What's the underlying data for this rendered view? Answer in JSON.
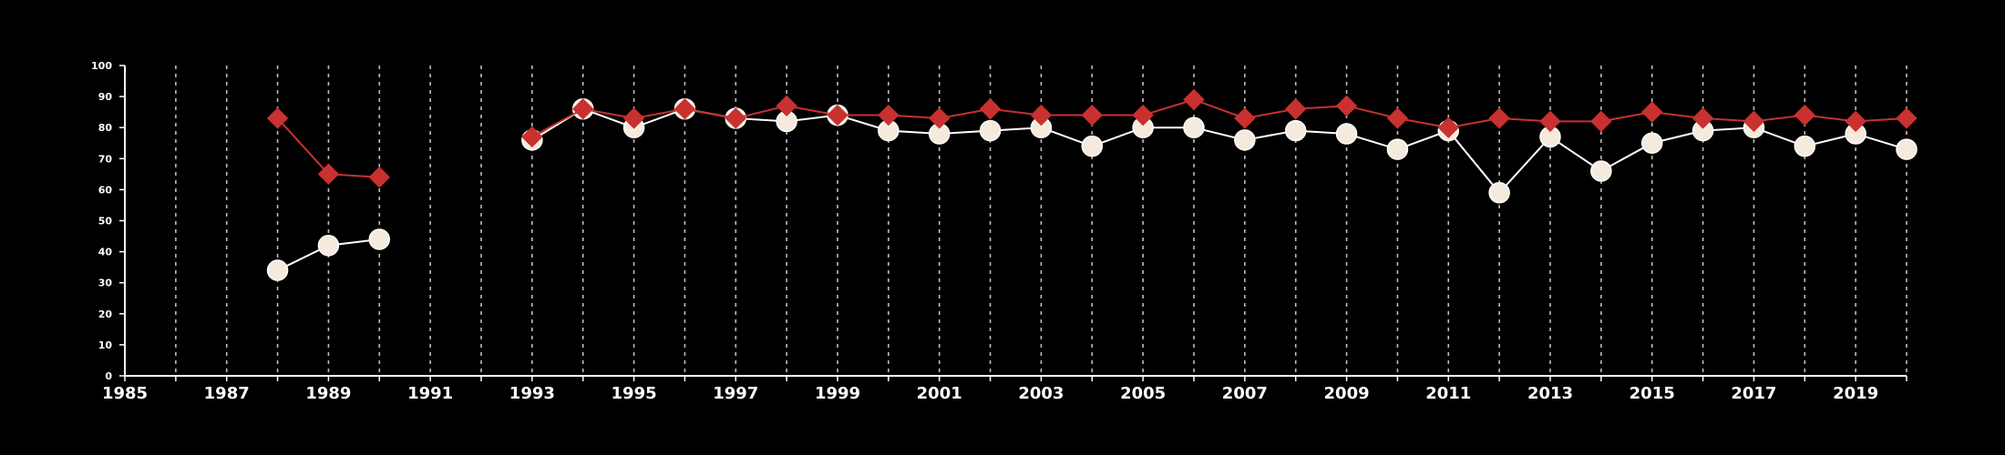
{
  "chart_data": {
    "type": "line",
    "x_domain": [
      1985,
      2020
    ],
    "y_domain": [
      0,
      100
    ],
    "x_ticks": [
      1985,
      1987,
      1989,
      1991,
      1993,
      1995,
      1997,
      1999,
      2001,
      2003,
      2005,
      2007,
      2009,
      2011,
      2013,
      2015,
      2017,
      2019
    ],
    "y_ticks": [
      0,
      10,
      20,
      30,
      40,
      50,
      60,
      70,
      80,
      90,
      100
    ],
    "grid": {
      "vertical_dashed": true,
      "every_year": true,
      "horizontal": false
    },
    "legend": "none",
    "series": [
      {
        "marker": "circle",
        "color": "#ffffff",
        "marker_fill": "#f5eadb",
        "segments": [
          {
            "x": [
              1988,
              1989,
              1990
            ],
            "y": [
              34,
              42,
              44
            ]
          },
          {
            "x": [
              1993,
              1994,
              1995,
              1996,
              1997,
              1998,
              1999,
              2000,
              2001,
              2002,
              2003,
              2004,
              2005,
              2006,
              2007,
              2008,
              2009,
              2010,
              2011,
              2012,
              2013,
              2014,
              2015,
              2016,
              2017,
              2018,
              2019,
              2020
            ],
            "y": [
              76,
              86,
              80,
              86,
              83,
              82,
              84,
              79,
              78,
              79,
              80,
              74,
              80,
              80,
              76,
              79,
              78,
              73,
              79,
              59,
              77,
              66,
              75,
              79,
              80,
              74,
              78,
              73
            ]
          }
        ]
      },
      {
        "marker": "diamond",
        "color": "#c8312f",
        "marker_fill": "#c8312f",
        "segments": [
          {
            "x": [
              1988,
              1989,
              1990
            ],
            "y": [
              83,
              65,
              64
            ]
          },
          {
            "x": [
              1993,
              1994,
              1995,
              1996,
              1997,
              1998,
              1999,
              2000,
              2001,
              2002,
              2003,
              2004,
              2005,
              2006,
              2007,
              2008,
              2009,
              2010,
              2011,
              2012,
              2013,
              2014,
              2015,
              2016,
              2017,
              2018,
              2019,
              2020
            ],
            "y": [
              77,
              86,
              83,
              86,
              83,
              87,
              84,
              84,
              83,
              86,
              84,
              84,
              84,
              89,
              83,
              86,
              87,
              83,
              80,
              83,
              82,
              82,
              85,
              83,
              82,
              84,
              82,
              83
            ]
          }
        ]
      }
    ]
  }
}
